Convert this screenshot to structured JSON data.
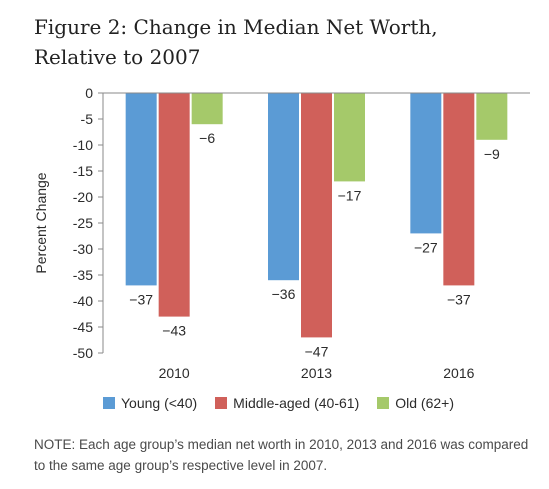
{
  "title_line1": "Figure 2: Change in Median Net Worth,",
  "title_line2": "Relative to 2007",
  "note": "NOTE: Each age group’s median net worth in 2010, 2013 and 2016 was compared to the same age group’s respective level in 2007.",
  "chart_data": {
    "type": "bar",
    "categories": [
      "2010",
      "2013",
      "2016"
    ],
    "series": [
      {
        "name": "Young (<40)",
        "color": "#5b9bd5",
        "values": [
          -37,
          -36,
          -27
        ]
      },
      {
        "name": "Middle-aged (40-61)",
        "color": "#d0605a",
        "values": [
          -43,
          -47,
          -37
        ]
      },
      {
        "name": "Old (62+)",
        "color": "#a5c96a",
        "values": [
          -6,
          -17,
          -9
        ]
      }
    ],
    "data_labels": [
      [
        "−37",
        "−36",
        "−27"
      ],
      [
        "−43",
        "−47",
        "−37"
      ],
      [
        "−6",
        "−17",
        "−9"
      ]
    ],
    "ylabel": "Percent Change",
    "ylim": [
      -50,
      0
    ],
    "yticks": [
      "0",
      "-5",
      "-10",
      "-15",
      "-20",
      "-25",
      "-30",
      "-35",
      "-40",
      "-45",
      "-50"
    ],
    "ytick_values": [
      0,
      -5,
      -10,
      -15,
      -20,
      -25,
      -30,
      -35,
      -40,
      -45,
      -50
    ],
    "grid": false,
    "legend_position": "bottom"
  }
}
